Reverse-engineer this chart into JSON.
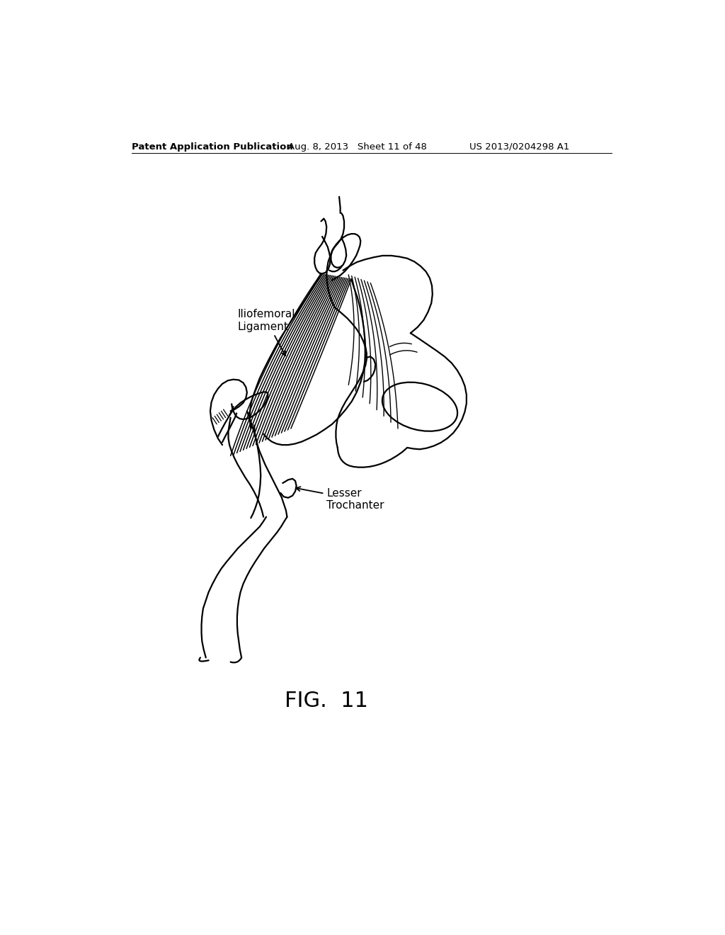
{
  "bg_color": "#ffffff",
  "line_color": "#000000",
  "header_left": "Patent Application Publication",
  "header_center": "Aug. 8, 2013   Sheet 11 of 48",
  "header_right": "US 2013/0204298 A1",
  "fig_label": "FIG.  11",
  "label1_line1": "Iliofemoral",
  "label1_line2": "Ligament",
  "label2_line1": "Lesser",
  "label2_line2": "Trochanter"
}
